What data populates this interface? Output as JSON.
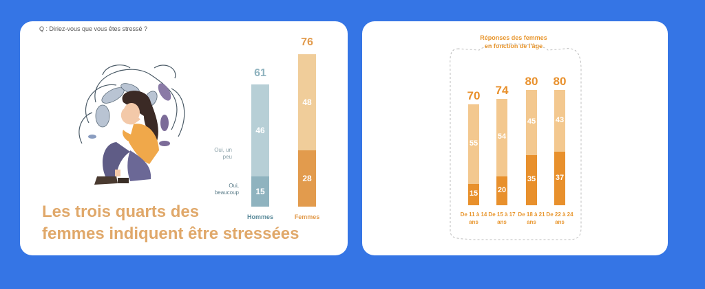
{
  "left_card": {
    "question": "Q : Diriez-vous que vous êtes stressé ?",
    "headline_line1": "Les trois quarts des",
    "headline_line2": "femmes indiquent être stressées",
    "legend_peu": "Oui, un peu",
    "legend_beaucoup": "Oui, beaucoup"
  },
  "right_card": {
    "title_line1": "Réponses des femmes",
    "title_line2": "en fonction de l'âge"
  },
  "chart_data": [
    {
      "type": "bar",
      "stacked": true,
      "categories": [
        "Hommes",
        "Femmes"
      ],
      "totals": [
        61,
        76
      ],
      "series": [
        {
          "name": "Oui, beaucoup",
          "values": [
            15,
            28
          ]
        },
        {
          "name": "Oui, un peu",
          "values": [
            46,
            48
          ]
        }
      ],
      "colors": {
        "Hommes": {
          "beaucoup": "#8fb3bf",
          "peu": "#b7cfd6",
          "total": "#8fb3bf"
        },
        "Femmes": {
          "beaucoup": "#e29b4d",
          "peu": "#f0cd9a",
          "total": "#e29b4d"
        }
      }
    },
    {
      "type": "bar",
      "stacked": true,
      "categories": [
        "De 11 à 14 ans",
        "De 15 à 17 ans",
        "De 18 à 21 ans",
        "De 22 à 24 ans"
      ],
      "totals": [
        70,
        74,
        80,
        80
      ],
      "series": [
        {
          "name": "Oui, beaucoup",
          "values": [
            15,
            20,
            35,
            37
          ]
        },
        {
          "name": "Oui, un peu",
          "values": [
            55,
            54,
            45,
            43
          ]
        }
      ],
      "colors": {
        "beaucoup": "#e8902c",
        "peu": "#f3c88f",
        "total": "#e8902c"
      }
    }
  ]
}
